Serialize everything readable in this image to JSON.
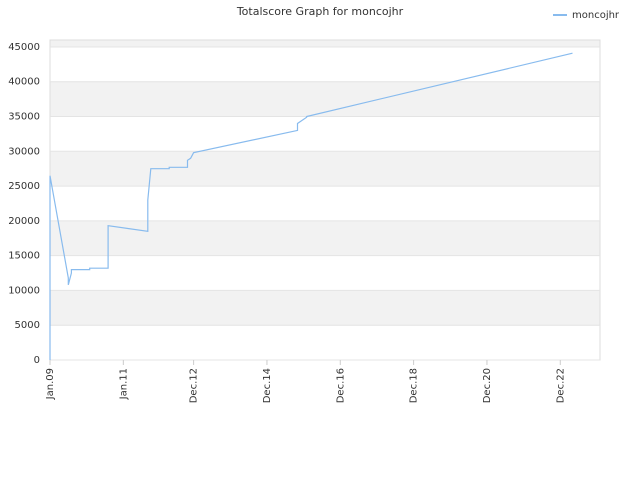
{
  "chart_data": {
    "type": "line",
    "title": "Totalscore Graph for moncojhr",
    "x": [
      "2009-01",
      "2009-01",
      "2009-07",
      "2009-07",
      "2009-08",
      "2009-08",
      "2010-02",
      "2010-02",
      "2010-08",
      "2010-08",
      "2011-09",
      "2011-09",
      "2011-10",
      "2012-04",
      "2012-04",
      "2012-10",
      "2012-10",
      "2012-11",
      "2012-12",
      "2015-10",
      "2015-10",
      "2016-01",
      "2016-01",
      "2023-04"
    ],
    "series": [
      {
        "name": "moncojhr",
        "color": "#88bbee",
        "values": [
          0,
          26500,
          11800,
          10800,
          12500,
          13000,
          13000,
          13200,
          13200,
          19300,
          18500,
          23000,
          27500,
          27500,
          27700,
          27700,
          28700,
          29000,
          29800,
          33000,
          34000,
          34900,
          35000,
          44100
        ]
      }
    ],
    "xlim": [
      "2009-01",
      "2024-01"
    ],
    "xticks": [
      {
        "value": "2009-01",
        "label": "Jan.09"
      },
      {
        "value": "2011-01",
        "label": "Jan.11"
      },
      {
        "value": "2012-12",
        "label": "Dec.12"
      },
      {
        "value": "2014-12",
        "label": "Dec.14"
      },
      {
        "value": "2016-12",
        "label": "Dec.16"
      },
      {
        "value": "2018-12",
        "label": "Dec.18"
      },
      {
        "value": "2020-12",
        "label": "Dec.20"
      },
      {
        "value": "2022-12",
        "label": "Dec.22"
      }
    ],
    "ylim": [
      0,
      46000
    ],
    "yticks": [
      0,
      5000,
      10000,
      15000,
      20000,
      25000,
      30000,
      35000,
      40000,
      45000
    ],
    "grid": true,
    "legend": "top-right"
  }
}
